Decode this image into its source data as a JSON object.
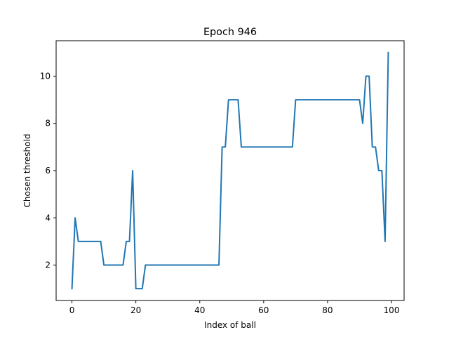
{
  "chart_data": {
    "type": "line",
    "title": "Epoch 946",
    "xlabel": "Index of ball",
    "ylabel": "Chosen threshold",
    "xlim": [
      -4.95,
      103.95
    ],
    "ylim": [
      0.5,
      11.5
    ],
    "xticks": [
      0,
      20,
      40,
      60,
      80,
      100
    ],
    "yticks": [
      2,
      4,
      6,
      8,
      10
    ],
    "grid": false,
    "series": [
      {
        "name": "",
        "color": "#1f77b4",
        "x": [
          0,
          1,
          2,
          3,
          4,
          5,
          6,
          7,
          8,
          9,
          10,
          11,
          12,
          13,
          14,
          15,
          16,
          17,
          18,
          19,
          20,
          21,
          22,
          23,
          24,
          25,
          26,
          27,
          28,
          29,
          30,
          31,
          32,
          33,
          34,
          35,
          36,
          37,
          38,
          39,
          40,
          41,
          42,
          43,
          44,
          45,
          46,
          47,
          48,
          49,
          50,
          51,
          52,
          53,
          54,
          55,
          56,
          57,
          58,
          59,
          60,
          61,
          62,
          63,
          64,
          65,
          66,
          67,
          68,
          69,
          70,
          71,
          72,
          73,
          74,
          75,
          76,
          77,
          78,
          79,
          80,
          81,
          82,
          83,
          84,
          85,
          86,
          87,
          88,
          89,
          90,
          91,
          92,
          93,
          94,
          95,
          96,
          97,
          98,
          99
        ],
        "values": [
          1,
          4,
          3,
          3,
          3,
          3,
          3,
          3,
          3,
          3,
          2,
          2,
          2,
          2,
          2,
          2,
          2,
          3,
          3,
          6,
          1,
          1,
          1,
          2,
          2,
          2,
          2,
          2,
          2,
          2,
          2,
          2,
          2,
          2,
          2,
          2,
          2,
          2,
          2,
          2,
          2,
          2,
          2,
          2,
          2,
          2,
          2,
          7,
          7,
          9,
          9,
          9,
          9,
          7,
          7,
          7,
          7,
          7,
          7,
          7,
          7,
          7,
          7,
          7,
          7,
          7,
          7,
          7,
          7,
          7,
          9,
          9,
          9,
          9,
          9,
          9,
          9,
          9,
          9,
          9,
          9,
          9,
          9,
          9,
          9,
          9,
          9,
          9,
          9,
          9,
          9,
          8,
          10,
          10,
          7,
          7,
          6,
          6,
          3,
          11
        ]
      }
    ]
  }
}
